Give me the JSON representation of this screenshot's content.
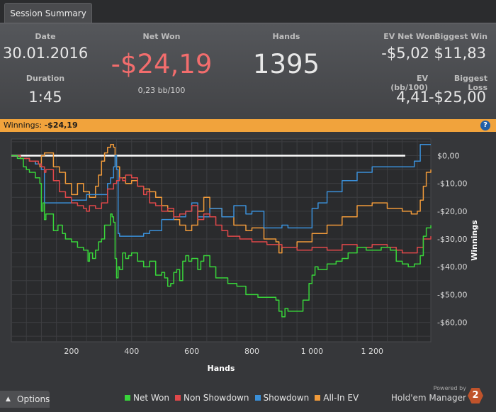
{
  "tab": {
    "label": "Session Summary"
  },
  "summary": {
    "date_label": "Date",
    "date": "30.01.2016",
    "duration_label": "Duration",
    "duration": "1:45",
    "net_won_label": "Net Won",
    "net_won": "-$24,19",
    "bb_per_100": "0,23 bb/100",
    "hands_label": "Hands",
    "hands": "1395",
    "ev_net_won_label": "EV Net Won",
    "ev_net_won": "-$5,02",
    "ev_bb_label": "EV (bb/100)",
    "ev_bb": "4,41",
    "biggest_win_label": "Biggest Win",
    "biggest_win": "$11,83",
    "biggest_loss_label": "Biggest Loss",
    "biggest_loss": "-$25,00"
  },
  "banner": {
    "label": "Winnings:",
    "value": "-$24,19",
    "help": "?"
  },
  "options": {
    "label": "Options"
  },
  "brand": {
    "powered": "Powered by",
    "name": "Hold'em Manager",
    "badge": "2"
  },
  "colors": {
    "net_won": "#38d43a",
    "non_showdown": "#e0484a",
    "showdown": "#3a8fd8",
    "all_in_ev": "#f09a3a",
    "negative_value": "#f26d6d",
    "banner": "#f1a33c"
  },
  "chart_data": {
    "type": "line",
    "xlabel": "Hands",
    "ylabel": "Winnings",
    "xlim": [
      0,
      1395
    ],
    "ylim": [
      -67,
      6
    ],
    "x_ticks": [
      200,
      400,
      600,
      800,
      1000,
      1200
    ],
    "x_tick_labels": [
      "200",
      "400",
      "600",
      "800",
      "1 000",
      "1 200"
    ],
    "y_ticks": [
      0,
      -10,
      -20,
      -30,
      -40,
      -50,
      -60
    ],
    "y_tick_labels": [
      "$0,00",
      "-$10,00",
      "-$20,00",
      "-$30,00",
      "-$40,00",
      "-$50,00",
      "-$60,00"
    ],
    "grid": true,
    "legend_position": "bottom",
    "reference_line": 0,
    "series": [
      {
        "name": "Net Won",
        "color": "#38d43a",
        "x": [
          0,
          20,
          40,
          50,
          60,
          80,
          95,
          100,
          105,
          110,
          115,
          140,
          155,
          170,
          180,
          200,
          220,
          240,
          255,
          260,
          270,
          280,
          290,
          300,
          310,
          320,
          330,
          335,
          340,
          345,
          350,
          355,
          360,
          370,
          380,
          390,
          400,
          420,
          440,
          460,
          480,
          500,
          510,
          520,
          530,
          540,
          550,
          560,
          570,
          580,
          590,
          600,
          620,
          630,
          640,
          660,
          680,
          700,
          720,
          750,
          780,
          800,
          820,
          850,
          880,
          890,
          900,
          910,
          920,
          940,
          950,
          970,
          990,
          1000,
          1010,
          1020,
          1050,
          1080,
          1100,
          1120,
          1150,
          1180,
          1200,
          1230,
          1260,
          1280,
          1300,
          1320,
          1340,
          1360,
          1370,
          1380,
          1395
        ],
        "y": [
          0,
          -1,
          -4,
          -5,
          -6,
          -8,
          -10,
          -20,
          -17,
          -23,
          -21,
          -27,
          -25,
          -28,
          -30,
          -31,
          -33,
          -34,
          -38,
          -35,
          -37,
          -34,
          -31,
          -30,
          -25,
          -25,
          -21,
          -22,
          -24,
          -37,
          -44,
          -40,
          -41,
          -35,
          -37,
          -36,
          -35,
          -38,
          -40,
          -38,
          -43,
          -42,
          -44,
          -47,
          -46,
          -42,
          -41,
          -45,
          -38,
          -36,
          -38,
          -37,
          -41,
          -38,
          -36,
          -40,
          -44,
          -44,
          -46,
          -47,
          -50,
          -50,
          -51,
          -51,
          -52,
          -56,
          -58,
          -55,
          -56,
          -56,
          -56,
          -52,
          -46,
          -43,
          -40,
          -41,
          -39,
          -38,
          -37,
          -35,
          -33,
          -34,
          -34,
          -33,
          -34,
          -38,
          -39,
          -40,
          -39,
          -36,
          -29,
          -26,
          -25
        ]
      },
      {
        "name": "Non Showdown",
        "color": "#e0484a",
        "x": [
          0,
          30,
          60,
          90,
          100,
          110,
          115,
          140,
          160,
          180,
          200,
          220,
          240,
          250,
          260,
          280,
          300,
          320,
          340,
          350,
          360,
          370,
          380,
          400,
          420,
          440,
          450,
          460,
          480,
          500,
          520,
          540,
          560,
          580,
          600,
          620,
          640,
          660,
          680,
          700,
          720,
          740,
          760,
          800,
          850,
          900,
          950,
          1000,
          1050,
          1100,
          1150,
          1200,
          1250,
          1280,
          1300,
          1330,
          1350,
          1370,
          1380,
          1395
        ],
        "y": [
          0,
          -1,
          -2,
          -3,
          -4,
          -6,
          -5,
          -9,
          -13,
          -15,
          -17,
          -18,
          -19,
          -20,
          -18,
          -19,
          -17,
          -12,
          -10,
          -9,
          -8,
          -9,
          -7,
          -8,
          -11,
          -14,
          -13,
          -17,
          -18,
          -20,
          -19,
          -22,
          -21,
          -20,
          -18,
          -23,
          -21,
          -22,
          -25,
          -27,
          -29,
          -29,
          -30,
          -31,
          -32,
          -33,
          -34,
          -33,
          -34,
          -32,
          -33,
          -32,
          -33,
          -34,
          -35,
          -35,
          -33,
          -30,
          -30,
          -29
        ]
      },
      {
        "name": "Showdown",
        "color": "#3a8fd8",
        "x": [
          0,
          30,
          60,
          80,
          100,
          110,
          150,
          200,
          250,
          300,
          320,
          330,
          340,
          345,
          350,
          355,
          360,
          400,
          440,
          460,
          500,
          540,
          580,
          600,
          620,
          640,
          660,
          700,
          740,
          780,
          800,
          840,
          880,
          900,
          920,
          950,
          1000,
          1020,
          1050,
          1100,
          1150,
          1200,
          1250,
          1300,
          1340,
          1360,
          1370,
          1395
        ],
        "y": [
          0,
          -1,
          -2,
          -3,
          -5,
          -17,
          -17,
          -16,
          -14,
          -14,
          -10,
          -8,
          -4,
          0,
          -5,
          -28,
          -29,
          -29,
          -28,
          -27,
          -23,
          -22,
          -20,
          -17,
          -22,
          -22,
          -19,
          -22,
          -18,
          -21,
          -20,
          -26,
          -26,
          -25,
          -26,
          -26,
          -19,
          -17,
          -13,
          -9,
          -6,
          -4,
          -4,
          -4,
          -2,
          4,
          4,
          4
        ]
      },
      {
        "name": "All-In EV",
        "color": "#f09a3a",
        "x": [
          0,
          30,
          60,
          80,
          95,
          100,
          110,
          140,
          160,
          180,
          200,
          220,
          240,
          260,
          280,
          290,
          300,
          310,
          320,
          330,
          340,
          345,
          350,
          360,
          380,
          400,
          420,
          440,
          460,
          480,
          500,
          520,
          540,
          560,
          580,
          600,
          620,
          640,
          660,
          700,
          740,
          780,
          800,
          840,
          880,
          890,
          900,
          950,
          1000,
          1050,
          1100,
          1150,
          1200,
          1250,
          1300,
          1330,
          1350,
          1360,
          1370,
          1380,
          1395
        ],
        "y": [
          0,
          -1,
          -2,
          -3,
          -4,
          0,
          1,
          -4,
          -6,
          -10,
          -14,
          -10,
          -13,
          -15,
          -11,
          -7,
          -2,
          1,
          3,
          4,
          3,
          0,
          -4,
          -8,
          -10,
          -9,
          -11,
          -12,
          -13,
          -15,
          -18,
          -20,
          -23,
          -25,
          -27,
          -25,
          -20,
          -15,
          -19,
          -22,
          -25,
          -27,
          -26,
          -30,
          -31,
          -35,
          -33,
          -31,
          -28,
          -25,
          -22,
          -18,
          -17,
          -19,
          -20,
          -21,
          -20,
          -16,
          -11,
          -6,
          -5
        ]
      }
    ]
  }
}
